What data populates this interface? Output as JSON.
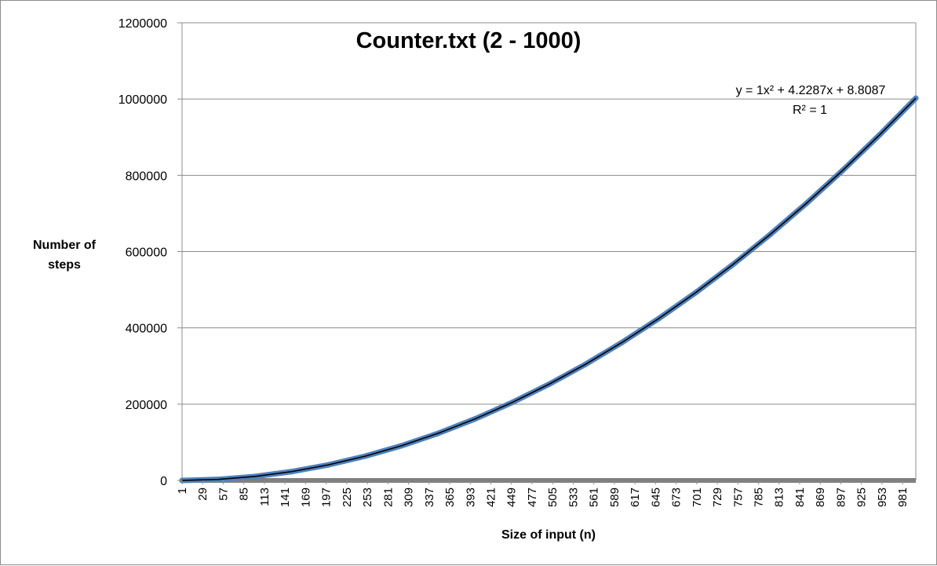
{
  "chart_data": {
    "type": "line",
    "title": "Counter.txt (2 - 1000)",
    "xlabel": "Size of input (n)",
    "ylabel_lines": [
      "Number of",
      "steps"
    ],
    "ylim": [
      0,
      1200000
    ],
    "y_ticks": [
      "0",
      "200000",
      "400000",
      "600000",
      "800000",
      "1000000",
      "1200000"
    ],
    "y_tick_values": [
      0,
      200000,
      400000,
      600000,
      800000,
      1000000,
      1200000
    ],
    "x_ticks": [
      "1",
      "29",
      "57",
      "85",
      "113",
      "141",
      "169",
      "197",
      "225",
      "253",
      "281",
      "309",
      "337",
      "365",
      "393",
      "421",
      "449",
      "477",
      "505",
      "533",
      "561",
      "589",
      "617",
      "645",
      "673",
      "701",
      "729",
      "757",
      "785",
      "813",
      "841",
      "869",
      "897",
      "925",
      "953",
      "981"
    ],
    "x_range": [
      1,
      999
    ],
    "grid": "horizontal",
    "series": [
      {
        "x": [
          1,
          50,
          100,
          150,
          200,
          250,
          300,
          350,
          400,
          450,
          500,
          550,
          600,
          650,
          700,
          750,
          800,
          850,
          900,
          950,
          999
        ],
        "values": [
          14,
          2720,
          10432,
          23143,
          40855,
          63566,
          91277,
          123989,
          161700,
          204412,
          252123,
          304835,
          362546,
          425257,
          492969,
          565680,
          643392,
          726103,
          813815,
          906526,
          1002236
        ],
        "color": "#4f81bd"
      }
    ],
    "trendline": {
      "equation": "y = 1x² + 4.2287x + 8.8087",
      "r_squared": "R² = 1",
      "color": "#000000"
    },
    "zero_baseline_color": "#808080"
  }
}
